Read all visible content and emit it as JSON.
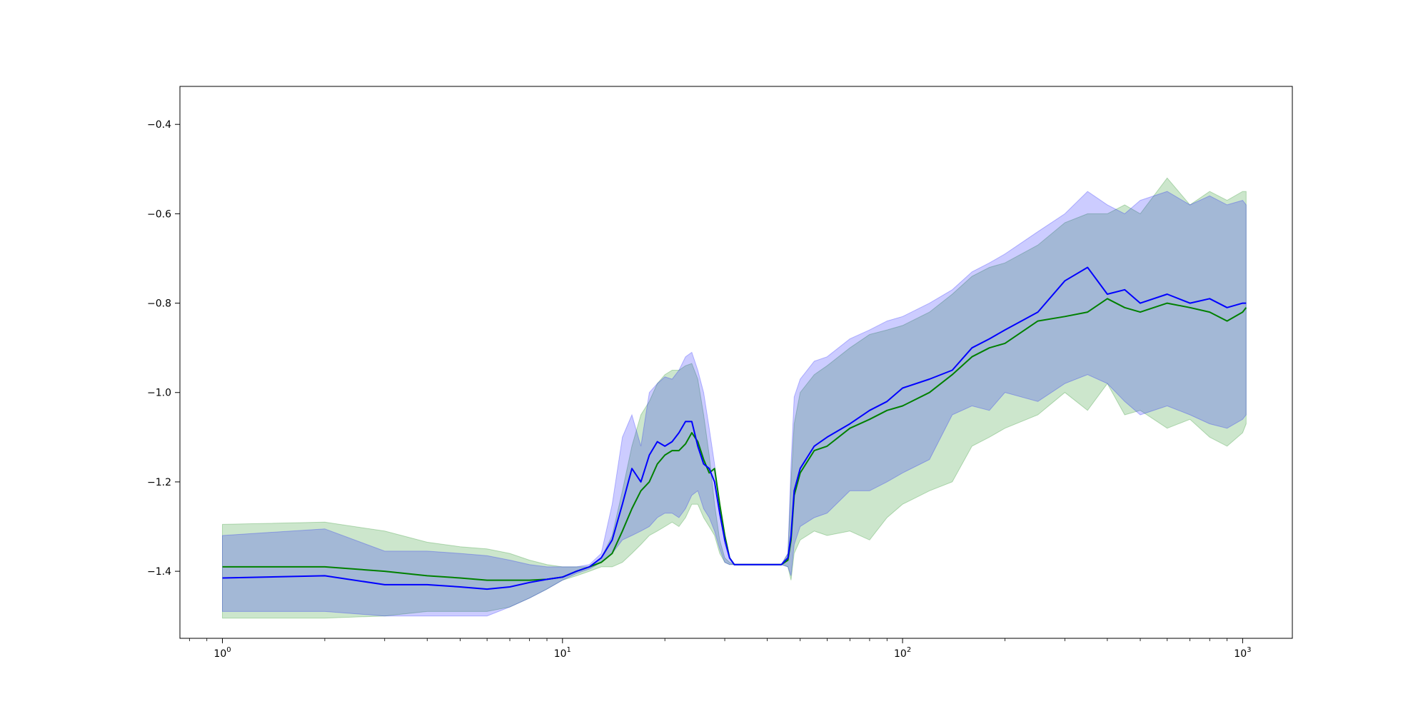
{
  "chart_data": {
    "type": "line",
    "title": "",
    "xlabel": "",
    "ylabel": "",
    "xscale": "log",
    "xlim": [
      0.75,
      1400
    ],
    "ylim": [
      -1.55,
      -0.315
    ],
    "grid": false,
    "legend": null,
    "x_ticks": [
      {
        "base": "10",
        "exp": "0",
        "value": 1
      },
      {
        "base": "10",
        "exp": "1",
        "value": 10
      },
      {
        "base": "10",
        "exp": "2",
        "value": 100
      },
      {
        "base": "10",
        "exp": "3",
        "value": 1000
      }
    ],
    "y_ticks": [
      {
        "label": "−0.4",
        "value": -0.4
      },
      {
        "label": "−0.6",
        "value": -0.6
      },
      {
        "label": "−0.8",
        "value": -0.8
      },
      {
        "label": "−1.0",
        "value": -1.0
      },
      {
        "label": "−1.2",
        "value": -1.2
      },
      {
        "label": "−1.4",
        "value": -1.4
      }
    ],
    "series": [
      {
        "color": "#008000",
        "band_color": "#008000",
        "band_opacity": 0.2,
        "x": [
          1,
          2,
          3,
          4,
          5,
          6,
          7,
          8,
          9,
          10,
          11,
          12,
          13,
          14,
          15,
          16,
          17,
          18,
          19,
          20,
          21,
          22,
          23,
          24,
          25,
          26,
          27,
          28,
          29,
          30,
          31,
          32,
          35,
          40,
          44,
          46,
          47,
          48,
          50,
          55,
          60,
          70,
          80,
          90,
          100,
          120,
          140,
          160,
          180,
          200,
          250,
          300,
          350,
          400,
          450,
          500,
          600,
          700,
          800,
          900,
          1000,
          1024
        ],
        "y": [
          -1.39,
          -1.39,
          -1.4,
          -1.41,
          -1.415,
          -1.42,
          -1.42,
          -1.42,
          -1.418,
          -1.413,
          -1.4,
          -1.39,
          -1.38,
          -1.36,
          -1.31,
          -1.26,
          -1.22,
          -1.2,
          -1.16,
          -1.14,
          -1.13,
          -1.13,
          -1.115,
          -1.09,
          -1.11,
          -1.15,
          -1.18,
          -1.17,
          -1.25,
          -1.32,
          -1.37,
          -1.385,
          -1.385,
          -1.385,
          -1.385,
          -1.375,
          -1.33,
          -1.23,
          -1.18,
          -1.13,
          -1.12,
          -1.08,
          -1.06,
          -1.04,
          -1.03,
          -1.0,
          -0.96,
          -0.92,
          -0.9,
          -0.89,
          -0.84,
          -0.83,
          -0.82,
          -0.79,
          -0.81,
          -0.82,
          -0.8,
          -0.81,
          -0.82,
          -0.84,
          -0.82,
          -0.81
        ],
        "upper": [
          -1.295,
          -1.29,
          -1.31,
          -1.335,
          -1.345,
          -1.35,
          -1.36,
          -1.375,
          -1.385,
          -1.39,
          -1.39,
          -1.39,
          -1.37,
          -1.32,
          -1.22,
          -1.12,
          -1.05,
          -1.02,
          -0.98,
          -0.96,
          -0.95,
          -0.95,
          -0.94,
          -0.935,
          -0.97,
          -1.05,
          -1.14,
          -1.25,
          -1.33,
          -1.37,
          -1.38,
          -1.385,
          -1.385,
          -1.385,
          -1.385,
          -1.36,
          -1.2,
          -1.07,
          -1.0,
          -0.96,
          -0.94,
          -0.9,
          -0.87,
          -0.86,
          -0.85,
          -0.82,
          -0.78,
          -0.74,
          -0.72,
          -0.71,
          -0.67,
          -0.62,
          -0.6,
          -0.6,
          -0.58,
          -0.6,
          -0.52,
          -0.58,
          -0.55,
          -0.57,
          -0.55,
          -0.55
        ],
        "lower": [
          -1.505,
          -1.505,
          -1.5,
          -1.49,
          -1.49,
          -1.49,
          -1.48,
          -1.46,
          -1.44,
          -1.42,
          -1.41,
          -1.4,
          -1.39,
          -1.39,
          -1.38,
          -1.36,
          -1.34,
          -1.32,
          -1.31,
          -1.3,
          -1.29,
          -1.3,
          -1.28,
          -1.25,
          -1.25,
          -1.28,
          -1.3,
          -1.32,
          -1.36,
          -1.38,
          -1.385,
          -1.385,
          -1.385,
          -1.385,
          -1.385,
          -1.39,
          -1.42,
          -1.36,
          -1.33,
          -1.31,
          -1.32,
          -1.31,
          -1.33,
          -1.28,
          -1.25,
          -1.22,
          -1.2,
          -1.12,
          -1.1,
          -1.08,
          -1.05,
          -1.0,
          -1.04,
          -0.98,
          -1.05,
          -1.04,
          -1.08,
          -1.06,
          -1.1,
          -1.12,
          -1.09,
          -1.07
        ]
      },
      {
        "color": "#0000ff",
        "band_color": "#0000ff",
        "band_opacity": 0.2,
        "x": [
          1,
          2,
          3,
          4,
          5,
          6,
          7,
          8,
          9,
          10,
          11,
          12,
          13,
          14,
          15,
          16,
          17,
          18,
          19,
          20,
          21,
          22,
          23,
          24,
          25,
          26,
          27,
          28,
          29,
          30,
          31,
          32,
          35,
          40,
          44,
          46,
          47,
          48,
          50,
          55,
          60,
          70,
          80,
          90,
          100,
          120,
          140,
          160,
          180,
          200,
          250,
          300,
          350,
          400,
          450,
          500,
          600,
          700,
          800,
          900,
          1000,
          1024
        ],
        "y": [
          -1.415,
          -1.41,
          -1.43,
          -1.43,
          -1.435,
          -1.44,
          -1.435,
          -1.425,
          -1.418,
          -1.413,
          -1.4,
          -1.39,
          -1.37,
          -1.33,
          -1.25,
          -1.17,
          -1.2,
          -1.14,
          -1.11,
          -1.12,
          -1.11,
          -1.09,
          -1.065,
          -1.065,
          -1.12,
          -1.16,
          -1.17,
          -1.2,
          -1.27,
          -1.33,
          -1.37,
          -1.385,
          -1.385,
          -1.385,
          -1.385,
          -1.37,
          -1.32,
          -1.22,
          -1.17,
          -1.12,
          -1.1,
          -1.07,
          -1.04,
          -1.02,
          -0.99,
          -0.97,
          -0.95,
          -0.9,
          -0.88,
          -0.86,
          -0.82,
          -0.75,
          -0.72,
          -0.78,
          -0.77,
          -0.8,
          -0.78,
          -0.8,
          -0.79,
          -0.81,
          -0.8,
          -0.8
        ],
        "upper": [
          -1.32,
          -1.305,
          -1.355,
          -1.355,
          -1.36,
          -1.365,
          -1.375,
          -1.385,
          -1.39,
          -1.39,
          -1.39,
          -1.385,
          -1.36,
          -1.25,
          -1.1,
          -1.05,
          -1.12,
          -1.0,
          -0.98,
          -0.965,
          -0.97,
          -0.95,
          -0.92,
          -0.91,
          -0.95,
          -1.0,
          -1.08,
          -1.16,
          -1.25,
          -1.34,
          -1.37,
          -1.385,
          -1.385,
          -1.385,
          -1.385,
          -1.36,
          -1.16,
          -1.01,
          -0.97,
          -0.93,
          -0.92,
          -0.88,
          -0.86,
          -0.84,
          -0.83,
          -0.8,
          -0.77,
          -0.73,
          -0.71,
          -0.69,
          -0.64,
          -0.6,
          -0.55,
          -0.58,
          -0.6,
          -0.57,
          -0.55,
          -0.58,
          -0.56,
          -0.58,
          -0.57,
          -0.58
        ],
        "lower": [
          -1.49,
          -1.49,
          -1.5,
          -1.5,
          -1.5,
          -1.5,
          -1.48,
          -1.46,
          -1.44,
          -1.42,
          -1.405,
          -1.395,
          -1.38,
          -1.36,
          -1.33,
          -1.32,
          -1.31,
          -1.3,
          -1.28,
          -1.27,
          -1.27,
          -1.28,
          -1.26,
          -1.23,
          -1.22,
          -1.26,
          -1.28,
          -1.31,
          -1.35,
          -1.38,
          -1.385,
          -1.385,
          -1.385,
          -1.385,
          -1.385,
          -1.39,
          -1.41,
          -1.34,
          -1.3,
          -1.28,
          -1.27,
          -1.22,
          -1.22,
          -1.2,
          -1.18,
          -1.15,
          -1.05,
          -1.03,
          -1.04,
          -1.0,
          -1.02,
          -0.98,
          -0.96,
          -0.98,
          -1.02,
          -1.05,
          -1.03,
          -1.05,
          -1.07,
          -1.08,
          -1.06,
          -1.05
        ]
      }
    ]
  }
}
